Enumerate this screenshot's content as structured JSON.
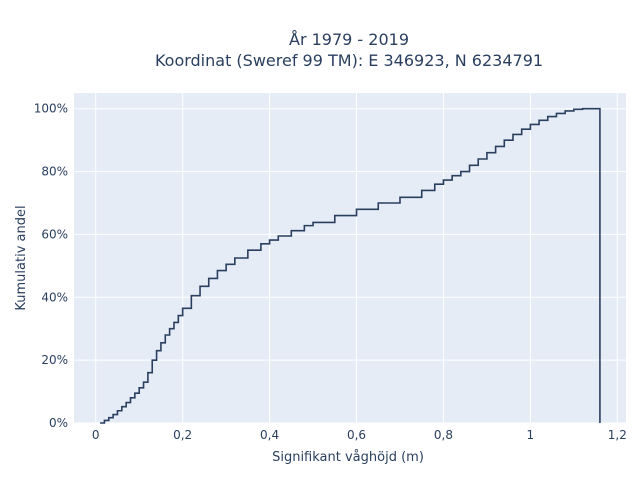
{
  "chart_data": {
    "type": "line",
    "subtype": "cumulative-step",
    "title_lines": [
      "År 1979 - 2019",
      "Koordinat (Sweref 99 TM): E 346923, N 6234791"
    ],
    "xlabel": "Signifikant våghöjd (m)",
    "ylabel": "Kumulativ andel",
    "xlim": [
      -0.05,
      1.22
    ],
    "ylim": [
      0,
      1.05
    ],
    "x_ticks": [
      0,
      0.2,
      0.4,
      0.6,
      0.8,
      1,
      1.2
    ],
    "x_tick_labels": [
      "0",
      "0,2",
      "0,4",
      "0,6",
      "0,8",
      "1",
      "1,2"
    ],
    "y_ticks": [
      0,
      0.2,
      0.4,
      0.6,
      0.8,
      1
    ],
    "y_tick_labels": [
      "0%",
      "20%",
      "40%",
      "60%",
      "80%",
      "100%"
    ],
    "grid": true,
    "colors": {
      "line": "#2a3f5f",
      "plot_bg": "#e5ecf6",
      "grid": "#ffffff",
      "text": "#2a3f5f"
    },
    "series": [
      {
        "x": [
          0.01,
          0.02,
          0.03,
          0.04,
          0.05,
          0.06,
          0.07,
          0.08,
          0.09,
          0.1,
          0.11,
          0.12,
          0.13,
          0.14,
          0.15,
          0.16,
          0.17,
          0.18,
          0.19,
          0.2,
          0.22,
          0.24,
          0.26,
          0.28,
          0.3,
          0.32,
          0.35,
          0.38,
          0.4,
          0.42,
          0.45,
          0.48,
          0.5,
          0.55,
          0.6,
          0.65,
          0.7,
          0.75,
          0.78,
          0.8,
          0.82,
          0.84,
          0.86,
          0.88,
          0.9,
          0.92,
          0.94,
          0.96,
          0.98,
          1.0,
          1.02,
          1.04,
          1.06,
          1.08,
          1.1,
          1.12,
          1.14,
          1.16
        ],
        "y": [
          0.0,
          0.008,
          0.017,
          0.027,
          0.039,
          0.052,
          0.065,
          0.08,
          0.095,
          0.112,
          0.13,
          0.16,
          0.2,
          0.23,
          0.255,
          0.28,
          0.3,
          0.32,
          0.342,
          0.365,
          0.405,
          0.435,
          0.46,
          0.485,
          0.505,
          0.525,
          0.55,
          0.57,
          0.582,
          0.595,
          0.612,
          0.628,
          0.638,
          0.66,
          0.68,
          0.7,
          0.718,
          0.74,
          0.76,
          0.773,
          0.787,
          0.8,
          0.82,
          0.84,
          0.86,
          0.88,
          0.9,
          0.918,
          0.935,
          0.95,
          0.963,
          0.975,
          0.985,
          0.993,
          0.998,
          1.0,
          1.0,
          1.0
        ]
      }
    ]
  }
}
